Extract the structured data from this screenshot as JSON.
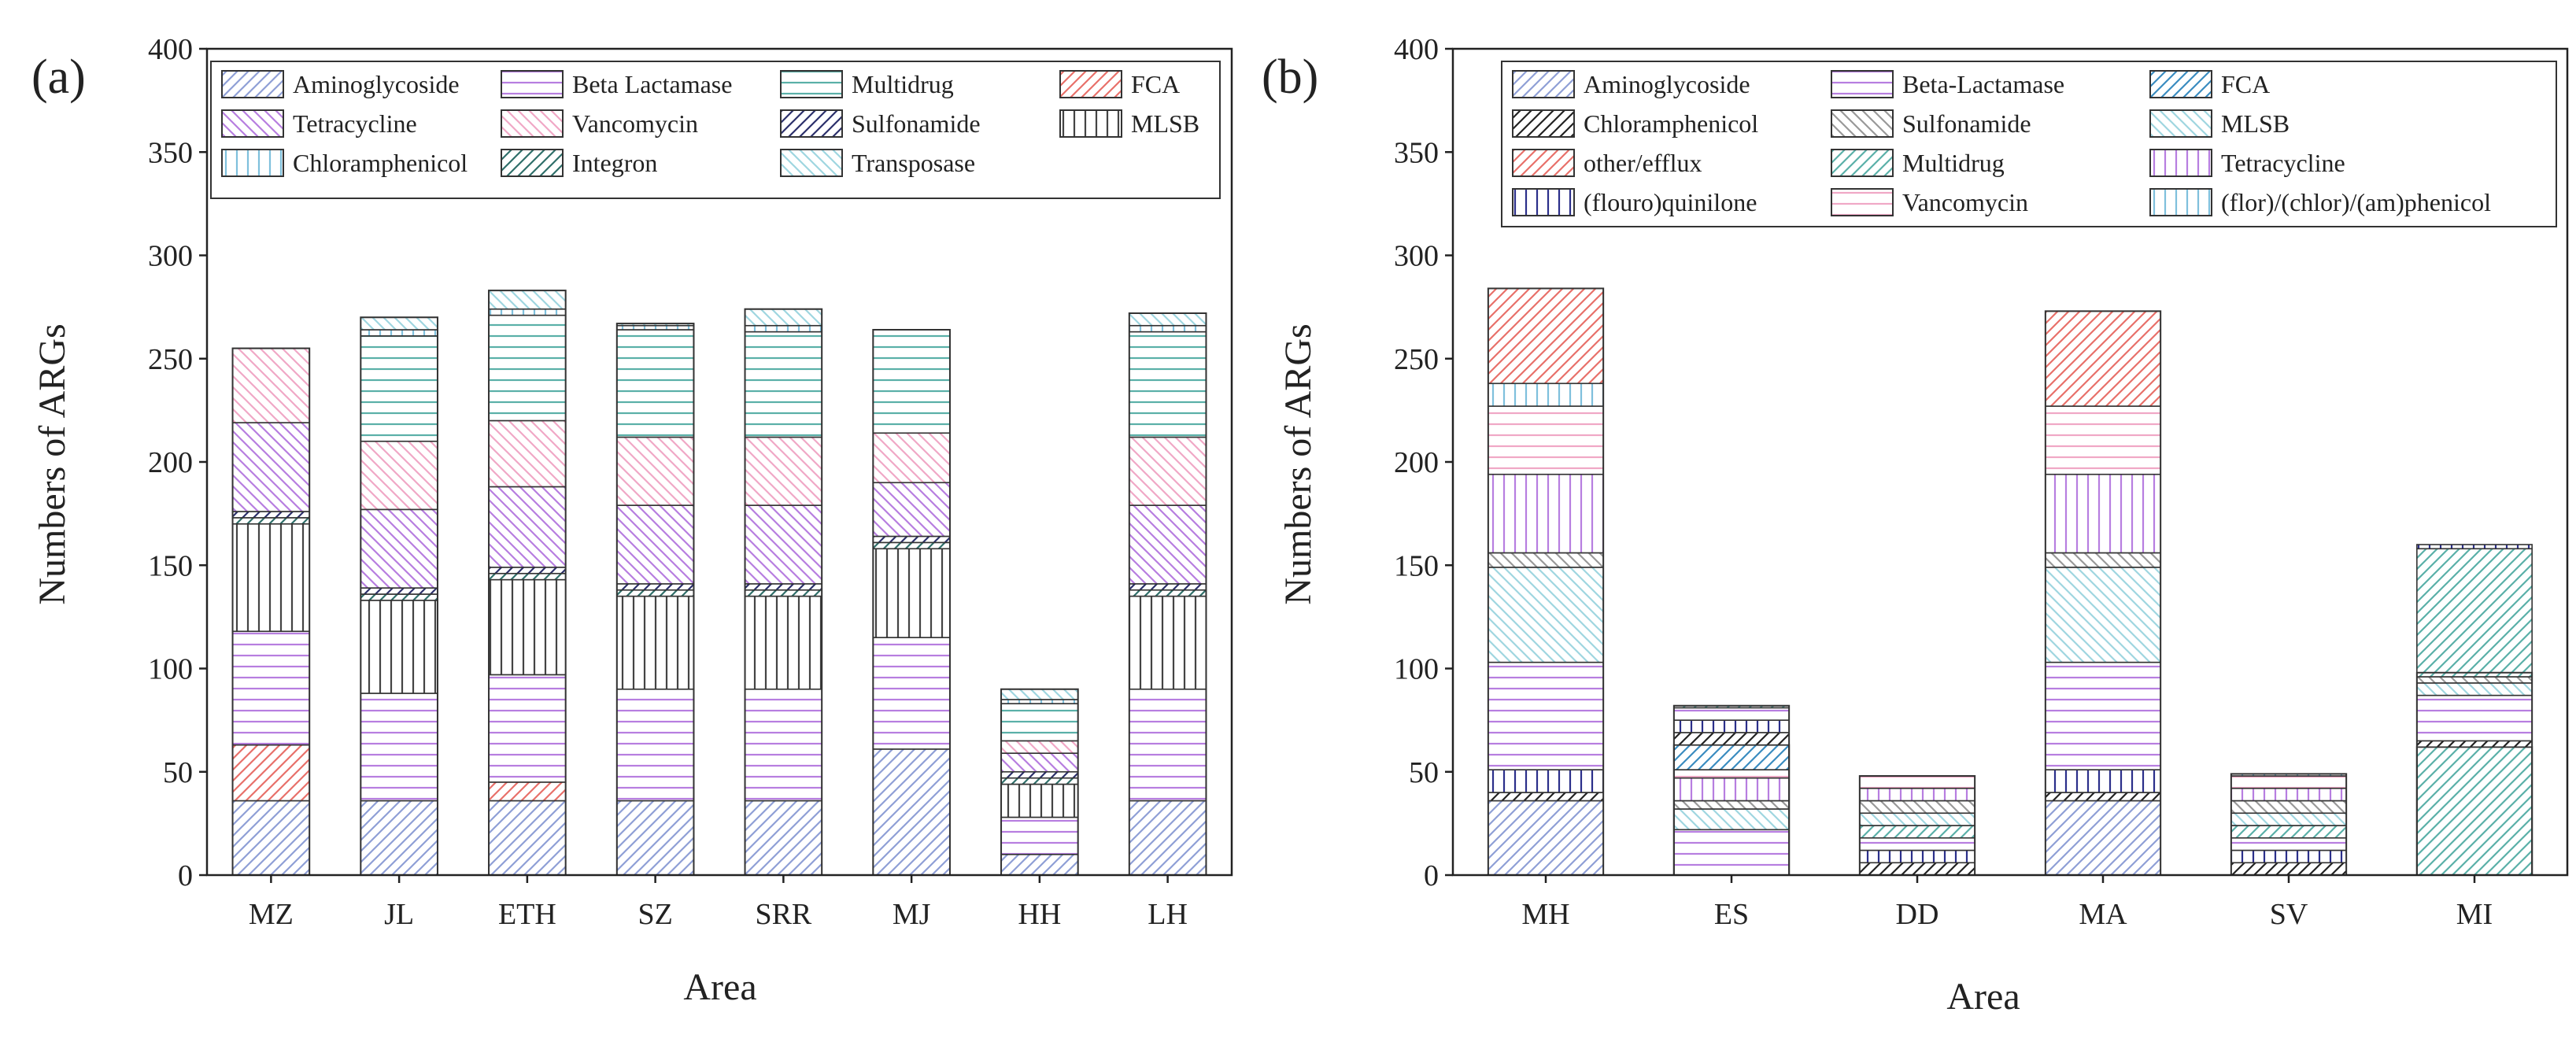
{
  "chart_data": [
    {
      "panel_label": "(a)",
      "type": "bar",
      "stacked": true,
      "xlabel": "Area",
      "ylabel": "Numbers of ARGs",
      "ylim": [
        0,
        400
      ],
      "yticks": [
        "0",
        "50",
        "100",
        "150",
        "200",
        "250",
        "300",
        "350",
        "400"
      ],
      "categories": [
        "MZ",
        "JL",
        "ETH",
        "SZ",
        "SRR",
        "MJ",
        "HH",
        "LH"
      ],
      "legend_position": "top",
      "series": [
        {
          "name": "Aminoglycoside",
          "color": "#8f9fd6",
          "pattern": "diag-right",
          "values": [
            36,
            36,
            36,
            36,
            36,
            61,
            10,
            36
          ]
        },
        {
          "name": "FCA",
          "color": "#e8706a",
          "pattern": "diag-right",
          "values": [
            27,
            0,
            9,
            0,
            0,
            0,
            0,
            0
          ]
        },
        {
          "name": "Beta Lactamase",
          "color": "#b77ee0",
          "pattern": "horizontal",
          "values": [
            55,
            52,
            52,
            54,
            54,
            54,
            18,
            54
          ]
        },
        {
          "name": "MLSB",
          "color": "#444444",
          "pattern": "vertical",
          "values": [
            52,
            45,
            46,
            45,
            45,
            43,
            16,
            45
          ]
        },
        {
          "name": "Integron",
          "color": "#2f6f6a",
          "pattern": "diag-right",
          "values": [
            3,
            3,
            3,
            3,
            3,
            3,
            3,
            3
          ]
        },
        {
          "name": "Sulfonamide",
          "color": "#2b2f6a",
          "pattern": "diag-right",
          "values": [
            3,
            3,
            3,
            3,
            3,
            3,
            3,
            3
          ]
        },
        {
          "name": "Tetracycline",
          "color": "#b77ee0",
          "pattern": "diag-left",
          "values": [
            43,
            38,
            39,
            38,
            38,
            26,
            9,
            38
          ]
        },
        {
          "name": "Vancomycin",
          "color": "#f0a8c6",
          "pattern": "diag-left",
          "values": [
            36,
            33,
            32,
            33,
            33,
            24,
            6,
            33
          ]
        },
        {
          "name": "Multidrug",
          "color": "#5ab0a8",
          "pattern": "horizontal",
          "values": [
            0,
            51,
            51,
            52,
            51,
            50,
            18,
            51
          ]
        },
        {
          "name": "Chloramphenicol",
          "color": "#7fc0dc",
          "pattern": "vertical",
          "values": [
            0,
            3,
            3,
            2,
            3,
            0,
            2,
            3
          ]
        },
        {
          "name": "Transposase",
          "color": "#9fd6e0",
          "pattern": "diag-left",
          "values": [
            0,
            6,
            9,
            1,
            8,
            0,
            5,
            6
          ]
        }
      ],
      "legend_order": [
        "Aminoglycoside",
        "Beta Lactamase",
        "Multidrug",
        "FCA",
        "Tetracycline",
        "Vancomycin",
        "Sulfonamide",
        "MLSB",
        "Chloramphenicol",
        "Integron",
        "Transposase"
      ]
    },
    {
      "panel_label": "(b)",
      "type": "bar",
      "stacked": true,
      "xlabel": "Area",
      "ylabel": "Numbers of ARGs",
      "ylim": [
        0,
        400
      ],
      "yticks": [
        "0",
        "50",
        "100",
        "150",
        "200",
        "250",
        "300",
        "350",
        "400"
      ],
      "categories": [
        "MH",
        "ES",
        "DD",
        "MA",
        "SV",
        "MI"
      ],
      "legend_position": "top",
      "series": [
        {
          "name": "Aminoglycoside",
          "color": "#8f9fd6",
          "pattern": "diag-right",
          "values": [
            36,
            0,
            0,
            36,
            0,
            0
          ]
        },
        {
          "name": "Chloramphenicol",
          "color": "#222222",
          "pattern": "diag-right",
          "values": [
            4,
            0,
            0,
            4,
            0,
            0
          ]
        },
        {
          "name": "(flouro)quinilone",
          "color": "#2b2f8a",
          "pattern": "vertical",
          "values": [
            11,
            0,
            0,
            11,
            0,
            0
          ]
        },
        {
          "name": "Beta-Lactamase",
          "color": "#b77ee0",
          "pattern": "horizontal",
          "values": [
            52,
            22,
            0,
            52,
            0,
            0
          ]
        },
        {
          "name": "Multidrug",
          "color": "#5ab0a8",
          "pattern": "diag-right",
          "values": [
            0,
            0,
            0,
            0,
            0,
            62
          ]
        },
        {
          "name": "MLSB",
          "color": "#9fd6e0",
          "pattern": "diag-left",
          "values": [
            46,
            10,
            0,
            46,
            0,
            0
          ]
        },
        {
          "name": "Sulfonamide",
          "color": "#999999",
          "pattern": "diag-left",
          "values": [
            7,
            4,
            0,
            7,
            0,
            0
          ]
        },
        {
          "name": "Tetracycline",
          "color": "#b77ee0",
          "pattern": "vertical",
          "values": [
            38,
            11,
            0,
            38,
            0,
            0
          ]
        },
        {
          "name": "Vancomycin",
          "color": "#f0a8c6",
          "pattern": "horizontal",
          "values": [
            33,
            4,
            0,
            33,
            0,
            0
          ]
        },
        {
          "name": "(flor)/(chlor)/(am)phenicol",
          "color": "#7fc0dc",
          "pattern": "vertical",
          "values": [
            11,
            0,
            0,
            0,
            0,
            0
          ]
        },
        {
          "name": "FCA",
          "color": "#3a8cc0",
          "pattern": "diag-right",
          "values": [
            0,
            12,
            0,
            0,
            0,
            0
          ]
        },
        {
          "name": "other/efflux",
          "color": "#e8706a",
          "pattern": "diag-right",
          "values": [
            46,
            0,
            0,
            46,
            0,
            0
          ]
        }
      ],
      "overlay_bars": [
        {
          "category": "ES",
          "total": 82
        },
        {
          "category": "DD",
          "total": 48
        },
        {
          "category": "SV",
          "total": 49
        },
        {
          "category": "MI",
          "total": 98
        }
      ],
      "legend_order": [
        "Aminoglycoside",
        "Beta-Lactamase",
        "FCA",
        "Chloramphenicol",
        "Sulfonamide",
        "MLSB",
        "other/efflux",
        "Multidrug",
        "Tetracycline",
        "(flouro)quinilone",
        "Vancomycin",
        "(flor)/(chlor)/(am)phenicol"
      ]
    }
  ]
}
